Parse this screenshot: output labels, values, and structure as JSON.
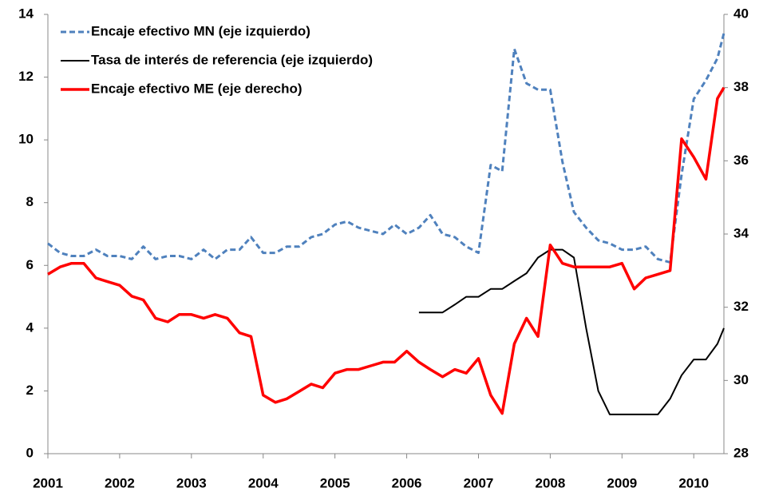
{
  "chart_data": {
    "type": "line",
    "x": [
      2001,
      2001.17,
      2001.33,
      2001.5,
      2001.67,
      2001.83,
      2002,
      2002.17,
      2002.33,
      2002.5,
      2002.67,
      2002.83,
      2003,
      2003.17,
      2003.33,
      2003.5,
      2003.67,
      2003.83,
      2004,
      2004.17,
      2004.33,
      2004.5,
      2004.67,
      2004.83,
      2005,
      2005.17,
      2005.33,
      2005.5,
      2005.67,
      2005.83,
      2006,
      2006.17,
      2006.33,
      2006.5,
      2006.67,
      2006.83,
      2007,
      2007.17,
      2007.33,
      2007.5,
      2007.67,
      2007.83,
      2008,
      2008.17,
      2008.33,
      2008.5,
      2008.67,
      2008.83,
      2009,
      2009.17,
      2009.33,
      2009.5,
      2009.67,
      2009.83,
      2010,
      2010.17,
      2010.33,
      2010.42
    ],
    "series": [
      {
        "name": "Encaje efectivo MN (eje izquierdo)",
        "color": "#4f81bd",
        "style": "dashed",
        "values": [
          6.7,
          6.4,
          6.3,
          6.3,
          6.5,
          6.3,
          6.3,
          6.2,
          6.6,
          6.2,
          6.3,
          6.3,
          6.2,
          6.5,
          6.2,
          6.5,
          6.5,
          6.9,
          6.4,
          6.4,
          6.6,
          6.6,
          6.9,
          7.0,
          7.3,
          7.4,
          7.2,
          7.1,
          7.0,
          7.3,
          7.0,
          7.2,
          7.6,
          7.0,
          6.9,
          6.6,
          6.4,
          9.2,
          9.0,
          12.9,
          11.8,
          11.6,
          11.6,
          9.3,
          7.7,
          7.2,
          6.8,
          6.7,
          6.5,
          6.5,
          6.6,
          6.2,
          6.1,
          8.9,
          11.3,
          11.9,
          12.6,
          13.4
        ]
      },
      {
        "name": "Tasa de interés de referencia (eje izquierdo)",
        "color": "#000000",
        "style": "solid",
        "values": [
          null,
          null,
          null,
          null,
          null,
          null,
          null,
          null,
          null,
          null,
          null,
          null,
          null,
          null,
          null,
          null,
          null,
          null,
          null,
          null,
          null,
          null,
          null,
          null,
          null,
          null,
          null,
          null,
          null,
          null,
          null,
          4.5,
          4.5,
          4.5,
          4.75,
          5.0,
          5.0,
          5.25,
          5.25,
          5.5,
          5.75,
          6.25,
          6.5,
          6.5,
          6.25,
          4.0,
          2.0,
          1.25,
          1.25,
          1.25,
          1.25,
          1.25,
          1.75,
          2.5,
          3.0,
          3.0,
          3.5,
          4.0
        ]
      },
      {
        "name": "Encaje efectivo ME (eje derecho)",
        "color": "#ff0000",
        "style": "solid",
        "axis": "y2",
        "values": [
          32.9,
          33.1,
          33.2,
          33.2,
          32.8,
          32.7,
          32.6,
          32.3,
          32.2,
          31.7,
          31.6,
          31.8,
          31.8,
          31.7,
          31.8,
          31.7,
          31.3,
          31.2,
          29.6,
          29.4,
          29.5,
          29.7,
          29.9,
          29.8,
          30.2,
          30.3,
          30.3,
          30.4,
          30.5,
          30.5,
          30.8,
          30.5,
          30.3,
          30.1,
          30.3,
          30.2,
          30.6,
          29.6,
          29.1,
          31.0,
          31.7,
          31.2,
          33.7,
          33.2,
          33.1,
          33.1,
          33.1,
          33.1,
          33.2,
          32.5,
          32.8,
          32.9,
          33.0,
          36.6,
          36.1,
          35.5,
          37.7,
          38.0
        ]
      }
    ],
    "xlim": [
      2001,
      2010.42
    ],
    "xticks": [
      2001,
      2002,
      2003,
      2004,
      2005,
      2006,
      2007,
      2008,
      2009,
      2010
    ],
    "ylim": [
      0,
      14
    ],
    "yticks": [
      0,
      2,
      4,
      6,
      8,
      10,
      12,
      14
    ],
    "y2lim": [
      28,
      40
    ],
    "y2ticks": [
      28,
      30,
      32,
      34,
      36,
      38,
      40
    ],
    "grid": false
  }
}
